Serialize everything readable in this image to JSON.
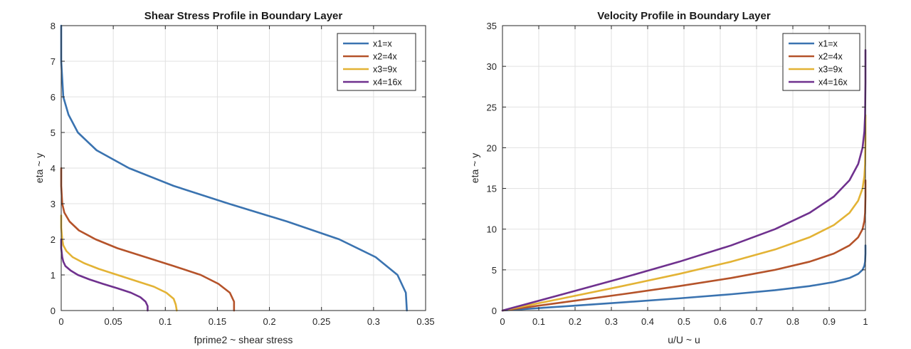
{
  "colors": {
    "series1": "#3a73b0",
    "series2": "#b5532a",
    "series3": "#e3b335",
    "series4": "#6f318e",
    "grid": "#e1e1e1",
    "axis": "#262626"
  },
  "chart_data": [
    {
      "type": "line",
      "title": "Shear Stress Profile in Boundary Layer",
      "xlabel": "fprime2 ~ shear stress",
      "ylabel": "eta ~ y",
      "xlim": [
        0,
        0.35
      ],
      "ylim": [
        0,
        8
      ],
      "xticks": [
        0,
        0.05,
        0.1,
        0.15,
        0.2,
        0.25,
        0.3,
        0.35
      ],
      "xtick_labels": [
        "0",
        "0.05",
        "0.1",
        "0.15",
        "0.2",
        "0.25",
        "0.3",
        "0.35"
      ],
      "yticks": [
        0,
        1,
        2,
        3,
        4,
        5,
        6,
        7,
        8
      ],
      "ytick_labels": [
        "0",
        "1",
        "2",
        "3",
        "4",
        "5",
        "6",
        "7",
        "8"
      ],
      "grid": true,
      "legend_position": "top-right",
      "series": [
        {
          "name": "x1=x",
          "x": [
            0.332,
            0.331,
            0.323,
            0.302,
            0.267,
            0.217,
            0.161,
            0.108,
            0.065,
            0.034,
            0.016,
            0.007,
            0.002,
            0.001,
            0.0,
            0.0,
            0.0
          ],
          "y": [
            0,
            0.5,
            1.0,
            1.5,
            2.0,
            2.5,
            3.0,
            3.5,
            4.0,
            4.5,
            5.0,
            5.5,
            6.0,
            6.5,
            7.0,
            7.5,
            8.0
          ]
        },
        {
          "name": "x2=4x",
          "x": [
            0.166,
            0.166,
            0.162,
            0.151,
            0.134,
            0.108,
            0.081,
            0.054,
            0.033,
            0.017,
            0.008,
            0.003,
            0.001,
            0.0,
            0.0
          ],
          "y": [
            0,
            0.25,
            0.5,
            0.75,
            1.0,
            1.25,
            1.5,
            1.75,
            2.0,
            2.25,
            2.5,
            2.75,
            3.0,
            3.5,
            4.0
          ]
        },
        {
          "name": "x3=9x",
          "x": [
            0.111,
            0.11,
            0.108,
            0.101,
            0.089,
            0.072,
            0.054,
            0.036,
            0.022,
            0.011,
            0.005,
            0.002,
            0.001,
            0.0,
            0.0
          ],
          "y": [
            0,
            0.17,
            0.33,
            0.5,
            0.67,
            0.83,
            1.0,
            1.17,
            1.33,
            1.5,
            1.67,
            1.83,
            2.0,
            2.33,
            2.67
          ]
        },
        {
          "name": "x4=16x",
          "x": [
            0.083,
            0.083,
            0.081,
            0.076,
            0.067,
            0.054,
            0.04,
            0.027,
            0.016,
            0.009,
            0.004,
            0.002,
            0.001,
            0.0,
            0.0
          ],
          "y": [
            0,
            0.125,
            0.25,
            0.375,
            0.5,
            0.625,
            0.75,
            0.875,
            1.0,
            1.125,
            1.25,
            1.375,
            1.5,
            1.75,
            2.0
          ]
        }
      ]
    },
    {
      "type": "line",
      "title": "Velocity Profile in Boundary Layer",
      "xlabel": "u/U ~ u",
      "ylabel": "eta ~ y",
      "xlim": [
        0,
        1
      ],
      "ylim": [
        0,
        35
      ],
      "xticks": [
        0,
        0.1,
        0.2,
        0.3,
        0.4,
        0.5,
        0.6,
        0.7,
        0.8,
        0.9,
        1
      ],
      "xtick_labels": [
        "0",
        "0.1",
        "0.2",
        "0.3",
        "0.4",
        "0.5",
        "0.6",
        "0.7",
        "0.8",
        "0.9",
        "1"
      ],
      "yticks": [
        0,
        5,
        10,
        15,
        20,
        25,
        30,
        35
      ],
      "ytick_labels": [
        "0",
        "5",
        "10",
        "15",
        "20",
        "25",
        "30",
        "35"
      ],
      "grid": true,
      "legend_position": "top-right",
      "series": [
        {
          "name": "x1=x",
          "x": [
            0,
            0.166,
            0.33,
            0.487,
            0.63,
            0.751,
            0.846,
            0.913,
            0.956,
            0.98,
            0.992,
            0.997,
            0.999,
            1.0,
            1.0
          ],
          "y": [
            0,
            0.5,
            1.0,
            1.5,
            2.0,
            2.5,
            3.0,
            3.5,
            4.0,
            4.5,
            5.0,
            5.5,
            6.0,
            7.0,
            8.0
          ]
        },
        {
          "name": "x2=4x",
          "x": [
            0,
            0.166,
            0.33,
            0.487,
            0.63,
            0.751,
            0.846,
            0.913,
            0.956,
            0.98,
            0.992,
            0.997,
            0.999,
            1.0,
            1.0
          ],
          "y": [
            0,
            1,
            2,
            3,
            4,
            5,
            6,
            7,
            8,
            9,
            10,
            11,
            12,
            14,
            16
          ]
        },
        {
          "name": "x3=9x",
          "x": [
            0,
            0.166,
            0.33,
            0.487,
            0.63,
            0.751,
            0.846,
            0.913,
            0.956,
            0.98,
            0.992,
            0.997,
            0.999,
            1.0,
            1.0
          ],
          "y": [
            0,
            1.5,
            3,
            4.5,
            6,
            7.5,
            9,
            10.5,
            12,
            13.5,
            15,
            16.5,
            18,
            21,
            24
          ]
        },
        {
          "name": "x4=16x",
          "x": [
            0,
            0.166,
            0.33,
            0.487,
            0.63,
            0.751,
            0.846,
            0.913,
            0.956,
            0.98,
            0.992,
            0.997,
            0.999,
            1.0,
            1.0
          ],
          "y": [
            0,
            2,
            4,
            6,
            8,
            10,
            12,
            14,
            16,
            18,
            20,
            22,
            24,
            28,
            32
          ]
        }
      ]
    }
  ]
}
